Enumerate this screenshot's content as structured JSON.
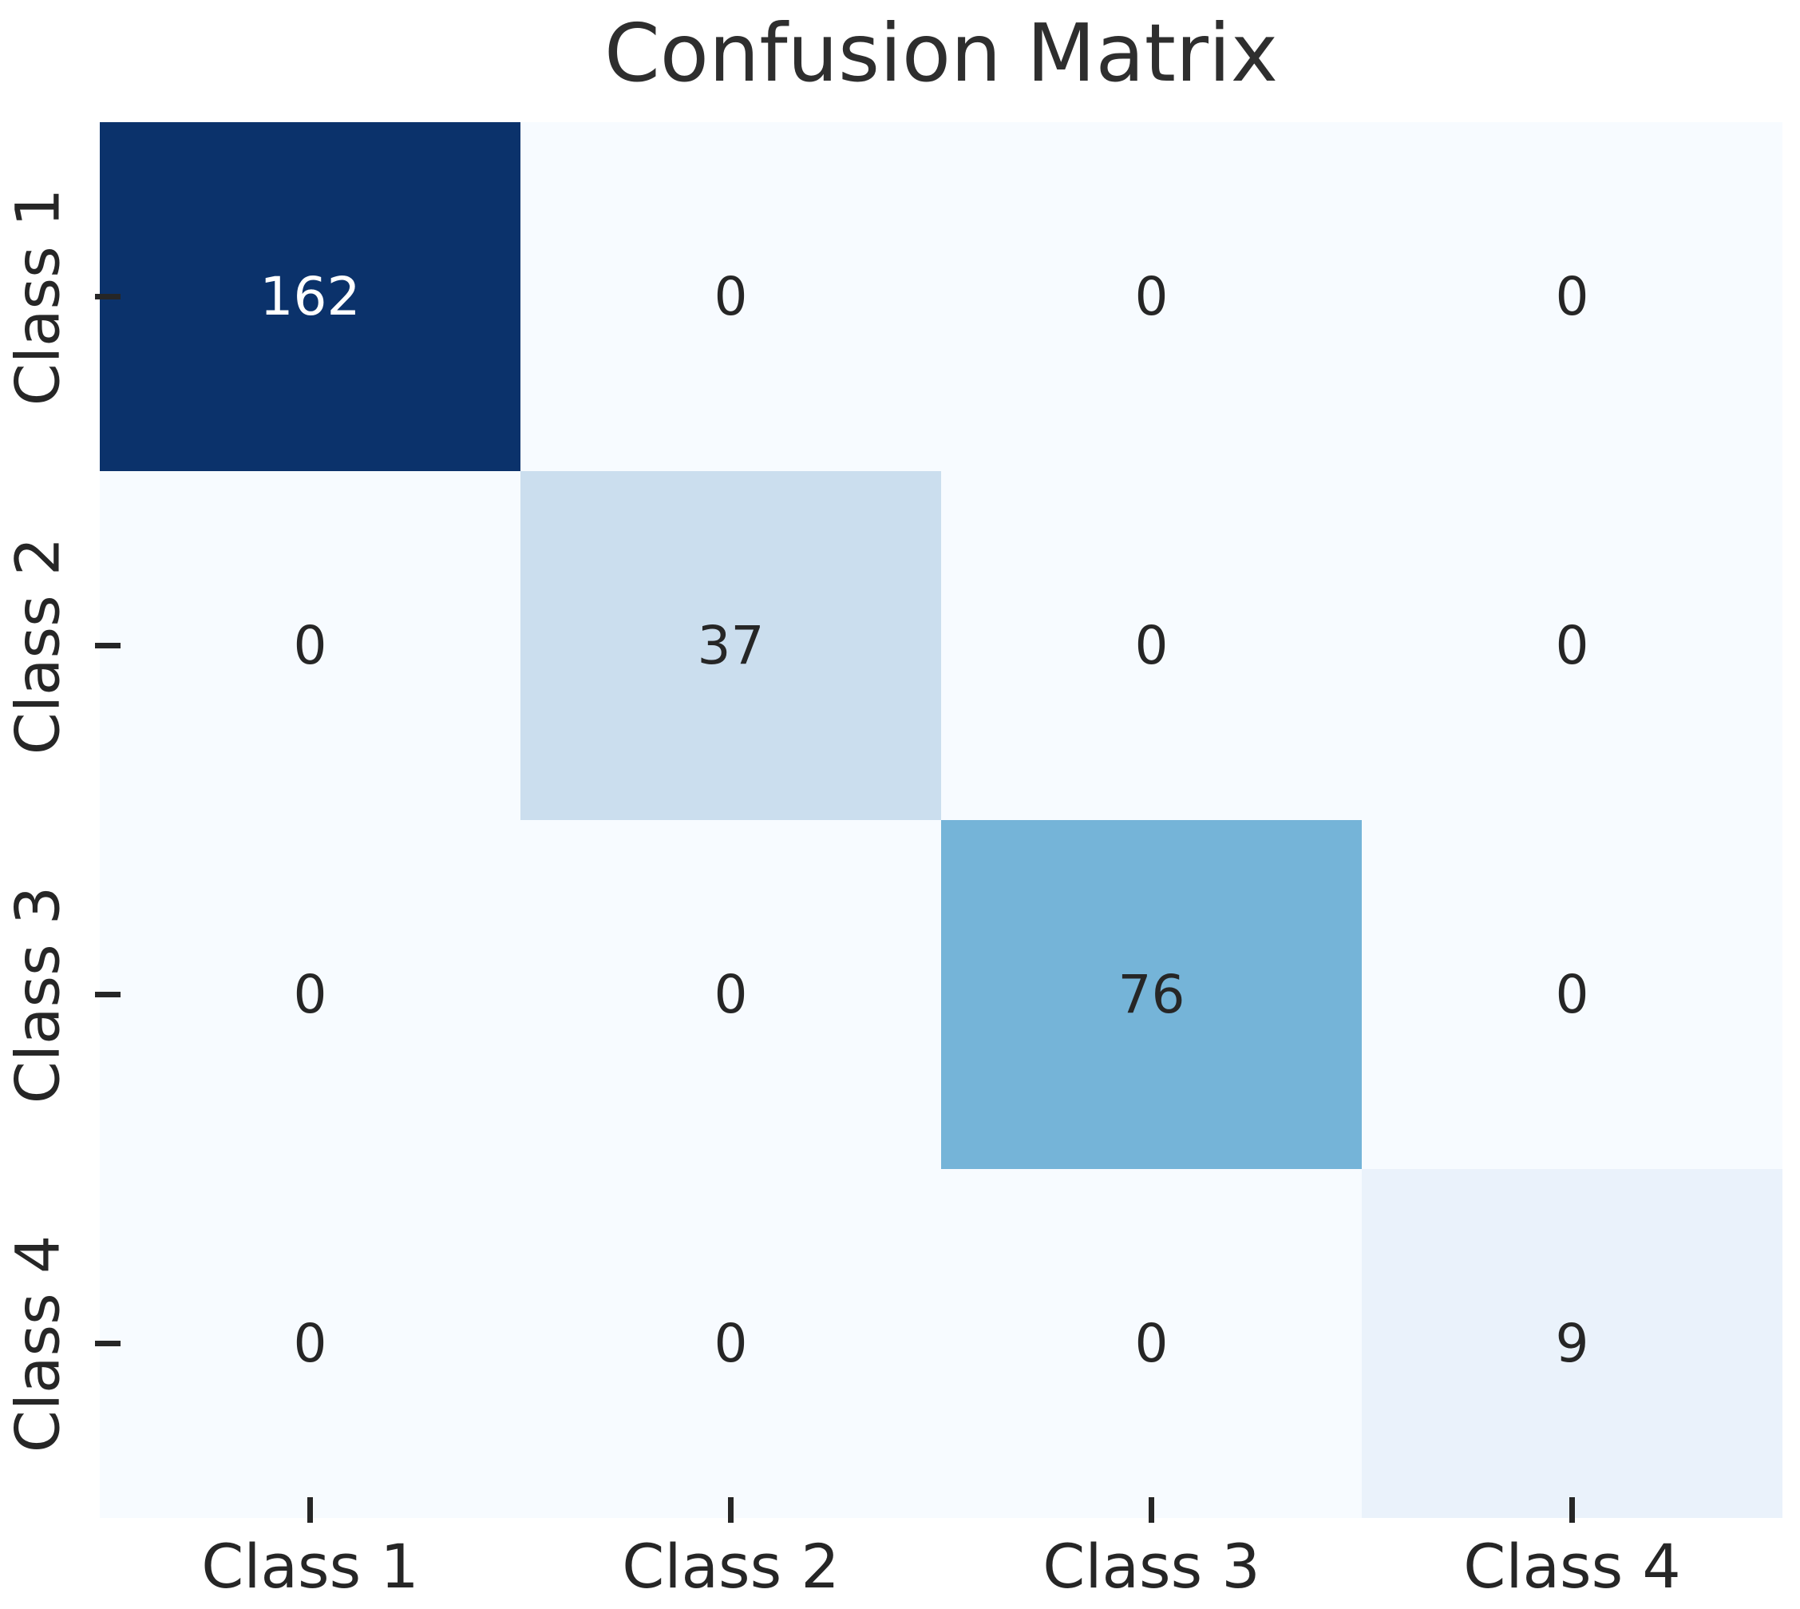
{
  "chart_data": {
    "type": "heatmap",
    "title": "Confusion Matrix",
    "x_categories": [
      "Class 1",
      "Class 2",
      "Class 3",
      "Class 4"
    ],
    "y_categories": [
      "Class 1",
      "Class 2",
      "Class 3",
      "Class 4"
    ],
    "matrix": [
      [
        162,
        0,
        0,
        0
      ],
      [
        0,
        37,
        0,
        0
      ],
      [
        0,
        0,
        76,
        0
      ],
      [
        0,
        0,
        0,
        9
      ]
    ],
    "vmin": 0,
    "vmax": 162,
    "colormap": "Blues",
    "colorbar": "none",
    "grid": "off",
    "cell_colors": [
      [
        "#0b326b",
        "#f7fbff",
        "#f7fbff",
        "#f7fbff"
      ],
      [
        "#f7fbff",
        "#cbdeee",
        "#f7fbff",
        "#f7fbff"
      ],
      [
        "#f7fbff",
        "#f7fbff",
        "#75b4d8",
        "#f7fbff"
      ],
      [
        "#f7fbff",
        "#f7fbff",
        "#f7fbff",
        "#eaf2fb"
      ]
    ],
    "text_colors": [
      [
        "#ffffff",
        "#262626",
        "#262626",
        "#262626"
      ],
      [
        "#262626",
        "#262626",
        "#262626",
        "#262626"
      ],
      [
        "#262626",
        "#262626",
        "#262626",
        "#262626"
      ],
      [
        "#262626",
        "#262626",
        "#262626",
        "#262626"
      ]
    ]
  },
  "style": {
    "title_color": "#2e2e2e",
    "label_color": "#262626",
    "tick_color": "#262626",
    "background": "#ffffff"
  }
}
